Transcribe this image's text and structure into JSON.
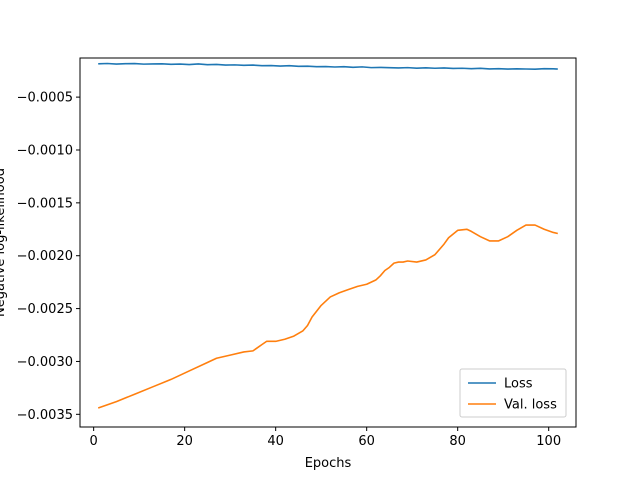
{
  "chart_data": {
    "type": "line",
    "title": "",
    "xlabel": "Epochs",
    "ylabel": "Negative log-likelihood",
    "xlim": [
      -3,
      106
    ],
    "ylim": [
      -0.00362,
      -0.00013
    ],
    "xticks": [
      0,
      20,
      40,
      60,
      80,
      100
    ],
    "yticks": [
      -0.0035,
      -0.003,
      -0.0025,
      -0.002,
      -0.0015,
      -0.001,
      -0.0005
    ],
    "ytick_labels": [
      "−0.0035",
      "−0.0030",
      "−0.0025",
      "−0.0020",
      "−0.0015",
      "−0.0010",
      "−0.0005"
    ],
    "xtick_labels": [
      "0",
      "20",
      "40",
      "60",
      "80",
      "100"
    ],
    "grid": false,
    "legend_position": "bottom-right",
    "series": [
      {
        "name": "Loss",
        "color": "#1f77b4",
        "x": [
          1,
          3,
          5,
          7,
          9,
          11,
          13,
          15,
          17,
          19,
          21,
          23,
          25,
          27,
          29,
          31,
          33,
          35,
          37,
          39,
          41,
          43,
          45,
          47,
          49,
          51,
          53,
          55,
          57,
          59,
          61,
          63,
          65,
          67,
          69,
          71,
          73,
          75,
          77,
          79,
          81,
          83,
          85,
          87,
          89,
          91,
          93,
          95,
          97,
          99,
          101,
          102
        ],
        "y": [
          -0.000185,
          -0.000182,
          -0.000187,
          -0.000184,
          -0.000183,
          -0.000188,
          -0.000186,
          -0.000185,
          -0.00019,
          -0.000187,
          -0.000192,
          -0.000186,
          -0.000193,
          -0.000191,
          -0.000197,
          -0.000195,
          -0.000199,
          -0.000197,
          -0.000203,
          -0.000202,
          -0.000206,
          -0.000203,
          -0.000209,
          -0.000207,
          -0.000212,
          -0.000211,
          -0.000215,
          -0.000212,
          -0.000218,
          -0.000214,
          -0.000221,
          -0.000219,
          -0.000222,
          -0.000224,
          -0.000221,
          -0.000226,
          -0.000223,
          -0.000227,
          -0.000224,
          -0.000229,
          -0.000227,
          -0.000231,
          -0.000228,
          -0.000233,
          -0.000231,
          -0.000235,
          -0.000232,
          -0.000234,
          -0.000236,
          -0.000231,
          -0.000232,
          -0.000235
        ]
      },
      {
        "name": "Val. loss",
        "color": "#ff7f0e",
        "x": [
          1,
          5,
          9,
          13,
          17,
          21,
          25,
          27,
          30,
          33,
          35,
          36,
          37,
          38,
          40,
          42,
          44,
          46,
          47,
          48,
          50,
          52,
          54,
          56,
          58,
          60,
          62,
          63,
          64,
          65,
          66,
          67,
          68,
          69,
          71,
          73,
          75,
          77,
          78,
          80,
          82,
          83,
          85,
          87,
          89,
          91,
          93,
          95,
          97,
          99,
          101,
          102
        ],
        "y": [
          -0.00344,
          -0.00338,
          -0.00331,
          -0.00324,
          -0.00317,
          -0.00309,
          -0.00301,
          -0.00297,
          -0.00294,
          -0.00291,
          -0.0029,
          -0.00287,
          -0.00284,
          -0.00281,
          -0.00281,
          -0.00279,
          -0.00276,
          -0.00271,
          -0.00266,
          -0.00258,
          -0.00247,
          -0.00239,
          -0.00235,
          -0.00232,
          -0.00229,
          -0.00227,
          -0.00223,
          -0.00219,
          -0.00214,
          -0.00211,
          -0.00207,
          -0.00206,
          -0.00206,
          -0.00205,
          -0.00206,
          -0.00204,
          -0.00199,
          -0.00189,
          -0.00183,
          -0.00176,
          -0.00175,
          -0.00177,
          -0.00182,
          -0.00186,
          -0.00186,
          -0.00182,
          -0.00176,
          -0.00171,
          -0.00171,
          -0.00175,
          -0.00178,
          -0.00179
        ]
      }
    ]
  }
}
